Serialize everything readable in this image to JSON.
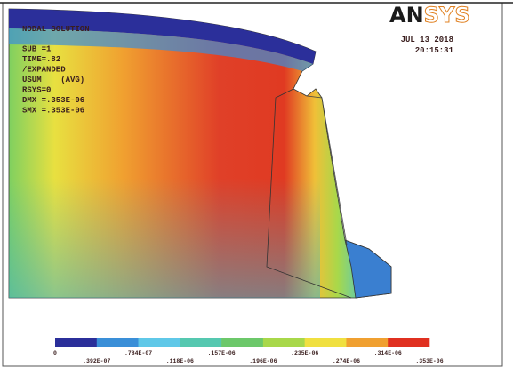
{
  "header": {
    "info_lines": [
      "NODAL SOLUTION",
      "SUB =1",
      "TIME=.82",
      "/EXPANDED",
      "USUM    (AVG)",
      "RSYS=0",
      "DMX =.353E-06",
      "SMX =.353E-06"
    ],
    "logo": {
      "dark": "AN",
      "light": "SYS"
    },
    "date": "JUL 13 2018",
    "time": "20:15:31"
  },
  "legend": {
    "colors": [
      "#2b2f9a",
      "#3a8fd8",
      "#5fc8e8",
      "#55c8b0",
      "#6cc86a",
      "#a8d84a",
      "#f0e040",
      "#f0a030",
      "#e03020"
    ],
    "labels": [
      "0",
      ".392E-07",
      ".784E-07",
      ".118E-06",
      ".157E-06",
      ".196E-06",
      ".235E-06",
      ".274E-06",
      ".314E-06",
      ".353E-06"
    ]
  }
}
